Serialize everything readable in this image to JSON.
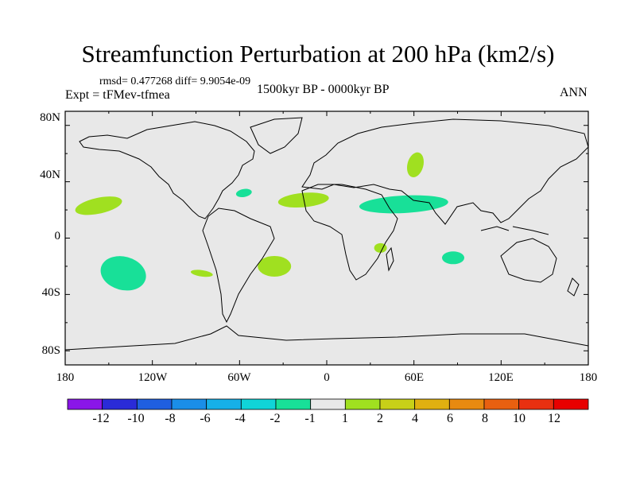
{
  "header": {
    "title": "Streamfunction Perturbation at 200 hPa (km2/s)",
    "stats": "rmsd= 0.477268 diff= 9.9054e-09",
    "experiment": "Expt = tFMev-tfmea",
    "period": "1500kyr BP - 0000kyr BP",
    "season": "ANN"
  },
  "axes": {
    "y_labels": [
      "80N",
      "40N",
      "0",
      "40S",
      "80S"
    ],
    "x_labels": [
      "180",
      "120W",
      "60W",
      "0",
      "60E",
      "120E",
      "180"
    ]
  },
  "colorbar": {
    "labels": [
      "-12",
      "-10",
      "-8",
      "-6",
      "-4",
      "-2",
      "-1",
      "1",
      "2",
      "4",
      "6",
      "8",
      "10",
      "12"
    ],
    "colors": [
      "#8a16e8",
      "#2a2bd8",
      "#1f5fe0",
      "#1a8ee8",
      "#16b0e8",
      "#10d4d8",
      "#18e098",
      "#e8e8e8",
      "#a0e020",
      "#c8d018",
      "#e0b010",
      "#e88a10",
      "#e86010",
      "#e83010",
      "#e80000"
    ]
  },
  "chart_data": {
    "type": "map",
    "projection": "cylindrical-equidistant",
    "lon_range": [
      -180,
      180
    ],
    "lat_range": [
      -90,
      90
    ],
    "background_color": "#e8e8e8",
    "features": [
      {
        "label": "positive anomaly",
        "level": "1 to 2",
        "color": "#a0e020",
        "lon": -157,
        "lat": 23
      },
      {
        "label": "positive anomaly",
        "level": "1 to 2",
        "color": "#a0e020",
        "lon": -16,
        "lat": 27
      },
      {
        "label": "positive anomaly",
        "level": "1 to 2",
        "color": "#a0e020",
        "lon": 61,
        "lat": 52
      },
      {
        "label": "positive anomaly",
        "level": "1 to 2",
        "color": "#a0e020",
        "lon": -36,
        "lat": -20
      },
      {
        "label": "positive anomaly",
        "level": "1 to 2",
        "color": "#a0e020",
        "lon": 37,
        "lat": -7
      },
      {
        "label": "positive anomaly",
        "level": "1 to 2",
        "color": "#a0e020",
        "lon": -86,
        "lat": -25
      },
      {
        "label": "negative anomaly",
        "level": "-2 to -1",
        "color": "#18e098",
        "lon": 53,
        "lat": 24
      },
      {
        "label": "negative anomaly",
        "level": "-2 to -1",
        "color": "#18e098",
        "lon": -140,
        "lat": -25
      },
      {
        "label": "negative anomaly",
        "level": "-2 to -1",
        "color": "#18e098",
        "lon": -57,
        "lat": 32
      },
      {
        "label": "negative anomaly",
        "level": "-2 to -1",
        "color": "#18e098",
        "lon": 87,
        "lat": -14
      }
    ]
  }
}
